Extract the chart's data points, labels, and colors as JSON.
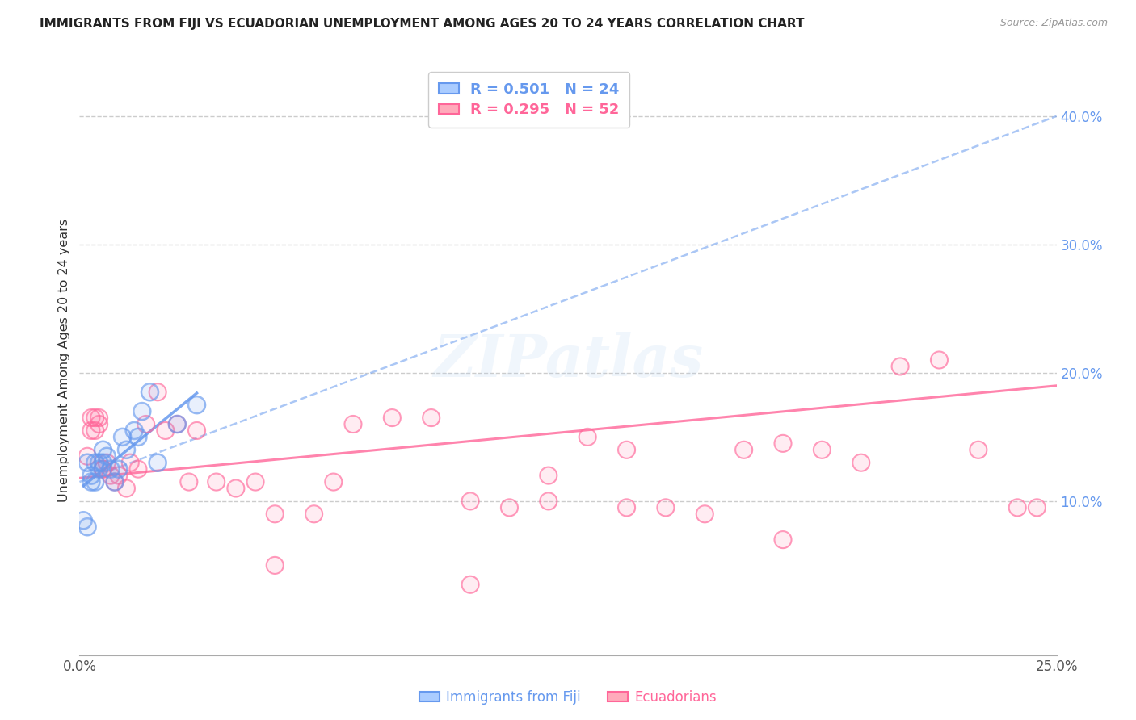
{
  "title": "IMMIGRANTS FROM FIJI VS ECUADORIAN UNEMPLOYMENT AMONG AGES 20 TO 24 YEARS CORRELATION CHART",
  "source": "Source: ZipAtlas.com",
  "ylabel": "Unemployment Among Ages 20 to 24 years",
  "xlim": [
    0.0,
    0.25
  ],
  "ylim": [
    -0.02,
    0.44
  ],
  "grid_color": "#cccccc",
  "background_color": "#ffffff",
  "fiji_color": "#6699ee",
  "ecuador_color": "#ff6699",
  "fiji_color_light": "#aaccff",
  "ecuador_color_light": "#ffaabb",
  "legend_r_fiji": "R = 0.501",
  "legend_n_fiji": "N = 24",
  "legend_r_ecuador": "R = 0.295",
  "legend_n_ecuador": "N = 52",
  "fiji_x": [
    0.001,
    0.002,
    0.002,
    0.003,
    0.003,
    0.004,
    0.004,
    0.005,
    0.005,
    0.006,
    0.006,
    0.007,
    0.008,
    0.009,
    0.01,
    0.011,
    0.012,
    0.014,
    0.015,
    0.016,
    0.018,
    0.02,
    0.025,
    0.03
  ],
  "fiji_y": [
    0.085,
    0.08,
    0.13,
    0.115,
    0.12,
    0.115,
    0.13,
    0.125,
    0.13,
    0.13,
    0.14,
    0.135,
    0.125,
    0.115,
    0.125,
    0.15,
    0.14,
    0.155,
    0.15,
    0.17,
    0.185,
    0.13,
    0.16,
    0.175
  ],
  "ecuador_x": [
    0.002,
    0.003,
    0.003,
    0.004,
    0.004,
    0.005,
    0.005,
    0.006,
    0.006,
    0.007,
    0.008,
    0.009,
    0.01,
    0.012,
    0.013,
    0.015,
    0.017,
    0.02,
    0.022,
    0.025,
    0.028,
    0.03,
    0.035,
    0.04,
    0.045,
    0.05,
    0.06,
    0.065,
    0.07,
    0.08,
    0.09,
    0.1,
    0.11,
    0.12,
    0.13,
    0.14,
    0.15,
    0.16,
    0.17,
    0.18,
    0.19,
    0.2,
    0.21,
    0.22,
    0.23,
    0.24,
    0.245,
    0.05,
    0.1,
    0.12,
    0.14,
    0.18
  ],
  "ecuador_y": [
    0.135,
    0.165,
    0.155,
    0.165,
    0.155,
    0.16,
    0.165,
    0.125,
    0.125,
    0.13,
    0.12,
    0.115,
    0.12,
    0.11,
    0.13,
    0.125,
    0.16,
    0.185,
    0.155,
    0.16,
    0.115,
    0.155,
    0.115,
    0.11,
    0.115,
    0.09,
    0.09,
    0.115,
    0.16,
    0.165,
    0.165,
    0.1,
    0.095,
    0.12,
    0.15,
    0.14,
    0.095,
    0.09,
    0.14,
    0.145,
    0.14,
    0.13,
    0.205,
    0.21,
    0.14,
    0.095,
    0.095,
    0.05,
    0.035,
    0.1,
    0.095,
    0.07
  ],
  "fiji_line_x": [
    0.0,
    0.25
  ],
  "fiji_line_y": [
    0.115,
    0.4
  ],
  "ecuador_line_x": [
    0.0,
    0.25
  ],
  "ecuador_line_y": [
    0.118,
    0.19
  ]
}
